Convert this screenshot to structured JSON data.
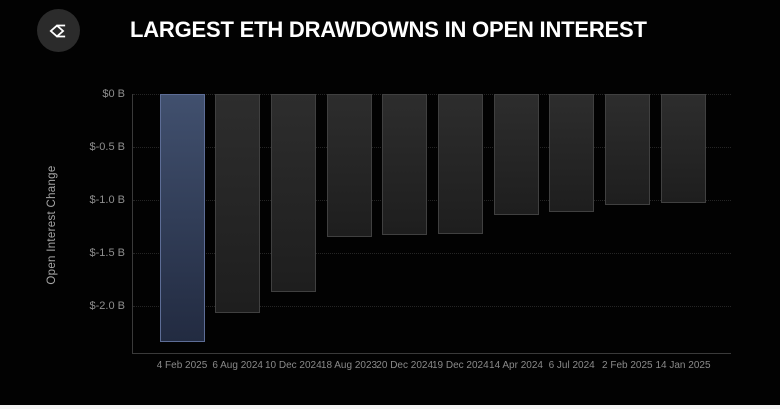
{
  "logo": {
    "icon": "sigma-diamond-icon",
    "background": "#2b2b2b",
    "glyph_color": "#ffffff"
  },
  "chart_data": {
    "type": "bar",
    "title": "LARGEST ETH DRAWDOWNS IN OPEN INTEREST",
    "xlabel": "",
    "ylabel": "Open Interest Change",
    "unit": "$ billions",
    "categories": [
      "4 Feb 2025",
      "6 Aug 2024",
      "10 Dec 2024",
      "18 Aug 2023",
      "20 Dec 2024",
      "19 Dec 2024",
      "14 Apr 2024",
      "6 Jul 2024",
      "2 Feb 2025",
      "14 Jan 2025"
    ],
    "values": [
      -2.34,
      -2.06,
      -1.87,
      -1.35,
      -1.33,
      -1.32,
      -1.14,
      -1.11,
      -1.05,
      -1.03
    ],
    "ylim": [
      -2.45,
      0
    ],
    "yticks": [
      0,
      -0.5,
      -1.0,
      -1.5,
      -2.0
    ],
    "ytick_labels": [
      "$0 B",
      "$-0.5 B",
      "$-1.0 B",
      "$-1.5 B",
      "$-2.0 B"
    ],
    "grid": "horizontal dotted",
    "legend": "none",
    "highlight_index": 0,
    "colors": {
      "background": "#000000",
      "axis": "#3a3a3a",
      "tick_labels": "#8f8f8f",
      "bar_default_top": "#2d2d2d",
      "bar_default_bottom": "#1e1e1e",
      "bar_default_border": "#404040",
      "bar_highlight_top": "#41506e",
      "bar_highlight_bottom": "#222b41",
      "bar_highlight_border": "#5d6d96",
      "title_text": "#ffffff"
    }
  }
}
